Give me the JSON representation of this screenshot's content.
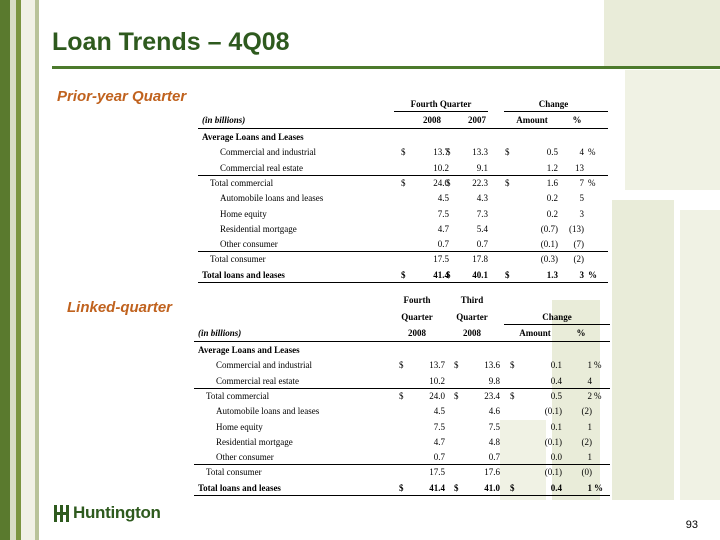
{
  "slide": {
    "title": "Loan Trends – 4Q08",
    "page_number": "93",
    "logo_text": "Huntington"
  },
  "colors": {
    "title": "#2e5a1e",
    "section_label": "#c0621e",
    "rule": "#4c7a2c"
  },
  "prior": {
    "label": "Prior-year Quarter",
    "group_left": "Fourth Quarter",
    "group_right": "Change",
    "col_label": "(in billions)",
    "h1": "2008",
    "h2": "2007",
    "h3": "Amount",
    "h4": "%",
    "rows": [
      {
        "label": "Average Loans and Leases",
        "c1": "",
        "c2": "",
        "c3": "",
        "c4": "",
        "d1": "",
        "d2": "",
        "d3": "",
        "pct": ""
      },
      {
        "label": "Commercial and industrial",
        "c1": "$",
        "c2": "13.7",
        "c3": "$",
        "c4": "13.3",
        "d1": "$",
        "d2": "0.5",
        "d3": "4",
        "pct": "%"
      },
      {
        "label": "Commercial real estate",
        "c1": "",
        "c2": "10.2",
        "c3": "",
        "c4": "9.1",
        "d1": "",
        "d2": "1.2",
        "d3": "13",
        "pct": ""
      },
      {
        "label": "Total commercial",
        "c1": "$",
        "c2": "24.0",
        "c3": "$",
        "c4": "22.3",
        "d1": "$",
        "d2": "1.6",
        "d3": "7",
        "pct": "%"
      },
      {
        "label": "Automobile loans and leases",
        "c1": "",
        "c2": "4.5",
        "c3": "",
        "c4": "4.3",
        "d1": "",
        "d2": "0.2",
        "d3": "5",
        "pct": ""
      },
      {
        "label": "Home equity",
        "c1": "",
        "c2": "7.5",
        "c3": "",
        "c4": "7.3",
        "d1": "",
        "d2": "0.2",
        "d3": "3",
        "pct": ""
      },
      {
        "label": "Residential mortgage",
        "c1": "",
        "c2": "4.7",
        "c3": "",
        "c4": "5.4",
        "d1": "",
        "d2": "(0.7)",
        "d3": "(13)",
        "pct": ""
      },
      {
        "label": "Other consumer",
        "c1": "",
        "c2": "0.7",
        "c3": "",
        "c4": "0.7",
        "d1": "",
        "d2": "(0.1)",
        "d3": "(7)",
        "pct": ""
      },
      {
        "label": "Total consumer",
        "c1": "",
        "c2": "17.5",
        "c3": "",
        "c4": "17.8",
        "d1": "",
        "d2": "(0.3)",
        "d3": "(2)",
        "pct": ""
      },
      {
        "label": "Total loans and leases",
        "c1": "$",
        "c2": "41.4",
        "c3": "$",
        "c4": "40.1",
        "d1": "$",
        "d2": "1.3",
        "d3": "3",
        "pct": "%"
      }
    ]
  },
  "linked": {
    "label": "Linked-quarter",
    "top_left": "Fourth",
    "top_right": "Third",
    "mid_left": "Quarter",
    "mid_right": "Quarter",
    "group_right": "Change",
    "col_label": "(in billions)",
    "h1": "2008",
    "h2": "2008",
    "h3": "Amount",
    "h4": "%",
    "rows": [
      {
        "label": "Average Loans and Leases",
        "c1": "",
        "c2": "",
        "c3": "",
        "c4": "",
        "d1": "",
        "d2": "",
        "d3": "",
        "pct": ""
      },
      {
        "label": "Commercial and industrial",
        "c1": "$",
        "c2": "13.7",
        "c3": "$",
        "c4": "13.6",
        "d1": "$",
        "d2": "0.1",
        "d3": "1",
        "pct": "%"
      },
      {
        "label": "Commercial real estate",
        "c1": "",
        "c2": "10.2",
        "c3": "",
        "c4": "9.8",
        "d1": "",
        "d2": "0.4",
        "d3": "4",
        "pct": ""
      },
      {
        "label": "Total commercial",
        "c1": "$",
        "c2": "24.0",
        "c3": "$",
        "c4": "23.4",
        "d1": "$",
        "d2": "0.5",
        "d3": "2",
        "pct": "%"
      },
      {
        "label": "Automobile loans and leases",
        "c1": "",
        "c2": "4.5",
        "c3": "",
        "c4": "4.6",
        "d1": "",
        "d2": "(0.1)",
        "d3": "(2)",
        "pct": ""
      },
      {
        "label": "Home equity",
        "c1": "",
        "c2": "7.5",
        "c3": "",
        "c4": "7.5",
        "d1": "",
        "d2": "0.1",
        "d3": "1",
        "pct": ""
      },
      {
        "label": "Residential mortgage",
        "c1": "",
        "c2": "4.7",
        "c3": "",
        "c4": "4.8",
        "d1": "",
        "d2": "(0.1)",
        "d3": "(2)",
        "pct": ""
      },
      {
        "label": "Other consumer",
        "c1": "",
        "c2": "0.7",
        "c3": "",
        "c4": "0.7",
        "d1": "",
        "d2": "0.0",
        "d3": "1",
        "pct": ""
      },
      {
        "label": "Total consumer",
        "c1": "",
        "c2": "17.5",
        "c3": "",
        "c4": "17.6",
        "d1": "",
        "d2": "(0.1)",
        "d3": "(0)",
        "pct": ""
      },
      {
        "label": "Total loans and leases",
        "c1": "$",
        "c2": "41.4",
        "c3": "$",
        "c4": "41.0",
        "d1": "$",
        "d2": "0.4",
        "d3": "1",
        "pct": "%"
      }
    ]
  }
}
